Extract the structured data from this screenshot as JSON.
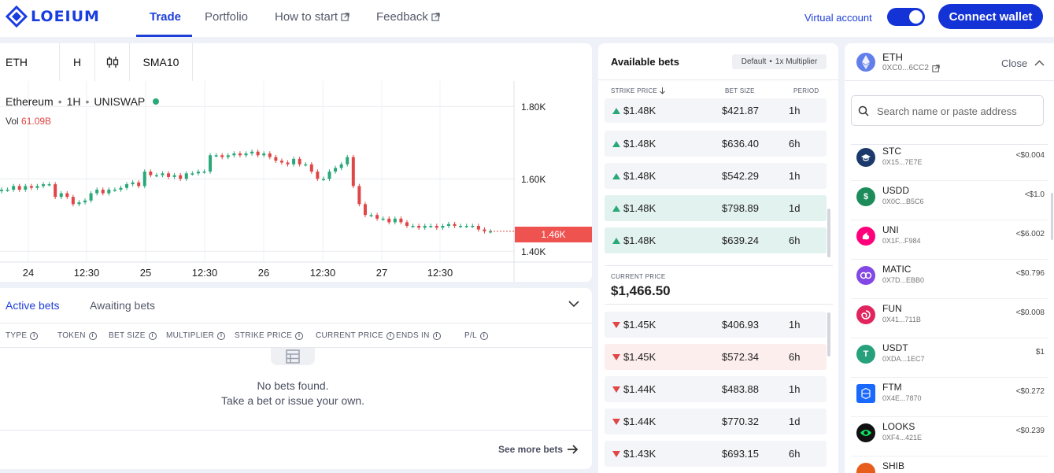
{
  "header": {
    "logo": "LOEIUM",
    "nav": [
      {
        "label": "Trade",
        "active": true
      },
      {
        "label": "Portfolio"
      },
      {
        "label": "How to start",
        "external": true
      },
      {
        "label": "Feedback",
        "external": true
      }
    ],
    "virtual_account_label": "Virtual account",
    "virtual_account_enabled": true,
    "connect_wallet": "Connect wallet",
    "accent_color": "#1433d6"
  },
  "chart_toolbar": {
    "symbol": "ETH",
    "interval": "H",
    "chart_type_icon": "candlestick-icon",
    "indicator": "SMA10"
  },
  "chart": {
    "legend_name": "Ethereum",
    "legend_interval": "1H",
    "legend_source": "UNISWAP",
    "vol_label": "Vol",
    "vol_value": "61.09B",
    "price_badge": "1.46K"
  },
  "chart_data": {
    "type": "line",
    "title": "Ethereum · 1H · UNISWAP",
    "xlabel": "",
    "ylabel": "",
    "x_ticks": [
      "24",
      "12:30",
      "25",
      "12:30",
      "26",
      "12:30",
      "27",
      "12:30"
    ],
    "y_ticks": [
      "1.80K",
      "1.60K",
      "1.40K"
    ],
    "ylim": [
      1.37,
      1.87
    ],
    "current_price_label": "1.46K",
    "grid": true,
    "series": [
      {
        "values": [
          1.57,
          1.57,
          1.58,
          1.57,
          1.58,
          1.575,
          1.58,
          1.585,
          1.585,
          1.55,
          1.56,
          1.55,
          1.53,
          1.535,
          1.54,
          1.56,
          1.57,
          1.56,
          1.57,
          1.57,
          1.575,
          1.585,
          1.59,
          1.58,
          1.62,
          1.61,
          1.61,
          1.615,
          1.605,
          1.61,
          1.6,
          1.615,
          1.615,
          1.62,
          1.62,
          1.665,
          1.665,
          1.66,
          1.665,
          1.67,
          1.665,
          1.67,
          1.675,
          1.665,
          1.67,
          1.66,
          1.65,
          1.645,
          1.64,
          1.655,
          1.64,
          1.64,
          1.62,
          1.6,
          1.6,
          1.62,
          1.63,
          1.64,
          1.66,
          1.58,
          1.53,
          1.5,
          1.5,
          1.49,
          1.49,
          1.48,
          1.49,
          1.48,
          1.47,
          1.47,
          1.465,
          1.47,
          1.47,
          1.465,
          1.47,
          1.475,
          1.47,
          1.47,
          1.47,
          1.47,
          1.46,
          1.455,
          1.455
        ]
      }
    ]
  },
  "bets": {
    "tabs": [
      "Active bets",
      "Awaiting bets"
    ],
    "columns": [
      "TYPE",
      "TOKEN",
      "BET SIZE",
      "MULTIPLIER",
      "STRIKE PRICE",
      "CURRENT PRICE",
      "ENDS IN",
      "P/L"
    ],
    "empty_line1": "No bets found.",
    "empty_line2": "Take a bet or issue your own.",
    "see_more": "See more bets"
  },
  "available": {
    "title": "Available bets",
    "badge_default": "Default",
    "badge_multiplier": "1x Multiplier",
    "col_strike": "STRIKE PRICE",
    "col_size": "BET SIZE",
    "col_period": "PERIOD",
    "up_rows": [
      {
        "strike": "$1.48K",
        "size": "$421.87",
        "period": "1h"
      },
      {
        "strike": "$1.48K",
        "size": "$636.40",
        "period": "6h"
      },
      {
        "strike": "$1.48K",
        "size": "$542.29",
        "period": "1h"
      },
      {
        "strike": "$1.48K",
        "size": "$798.89",
        "period": "1d"
      },
      {
        "strike": "$1.48K",
        "size": "$639.24",
        "period": "6h"
      }
    ],
    "current_label": "CURRENT PRICE",
    "current_value": "$1,466.50",
    "down_rows": [
      {
        "strike": "$1.45K",
        "size": "$406.93",
        "period": "1h"
      },
      {
        "strike": "$1.45K",
        "size": "$572.34",
        "period": "6h"
      },
      {
        "strike": "$1.44K",
        "size": "$483.88",
        "period": "1h"
      },
      {
        "strike": "$1.44K",
        "size": "$770.32",
        "period": "1d"
      },
      {
        "strike": "$1.43K",
        "size": "$693.15",
        "period": "6h"
      }
    ]
  },
  "token_panel": {
    "selected_symbol": "ETH",
    "selected_address": "0XC0...6CC2",
    "close_label": "Close",
    "search_placeholder": "Search name or paste address",
    "tokens": [
      {
        "symbol": "STC",
        "address": "0X15...7E7E",
        "price": "<$0.004",
        "color": "#1b3a6b",
        "icon": "stc-icon"
      },
      {
        "symbol": "USDD",
        "address": "0X0C...B5C6",
        "price": "<$1.0",
        "color": "#1e8c5a",
        "icon": "usdd-icon"
      },
      {
        "symbol": "UNI",
        "address": "0X1F...F984",
        "price": "<$6.002",
        "color": "#ff007a",
        "icon": "uni-icon"
      },
      {
        "symbol": "MATIC",
        "address": "0X7D...EBB0",
        "price": "<$0.796",
        "color": "#8247e5",
        "icon": "matic-icon"
      },
      {
        "symbol": "FUN",
        "address": "0X41...711B",
        "price": "<$0.008",
        "color": "#e0245e",
        "icon": "fun-icon"
      },
      {
        "symbol": "USDT",
        "address": "0XDA...1EC7",
        "price": "$1",
        "color": "#26a17b",
        "icon": "usdt-icon"
      },
      {
        "symbol": "FTM",
        "address": "0X4E...7870",
        "price": "<$0.272",
        "color": "#1969ff",
        "icon": "ftm-icon"
      },
      {
        "symbol": "LOOKS",
        "address": "0XF4...421E",
        "price": "<$0.239",
        "color": "#111111",
        "icon": "looks-icon"
      },
      {
        "symbol": "SHIB",
        "address": "",
        "price": "",
        "color": "#e65d1c",
        "icon": "shib-icon"
      }
    ]
  }
}
